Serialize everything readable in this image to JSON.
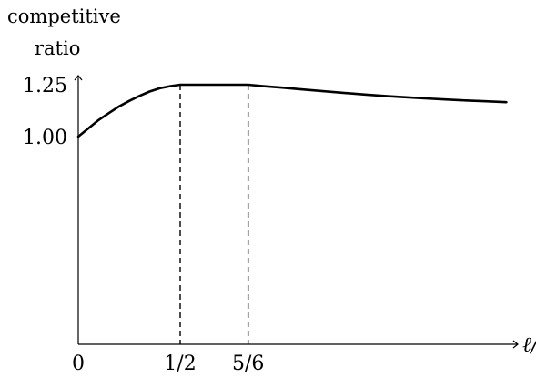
{
  "chart_data": {
    "type": "line",
    "ylabel_lines": [
      "competitive",
      "ratio"
    ],
    "xlabel": "ℓ/s",
    "xlim": [
      0,
      2.1
    ],
    "ylim": [
      0,
      1.25
    ],
    "x_ticks": [
      {
        "value": 0,
        "label": "0"
      },
      {
        "value": 0.5,
        "label": "1/2"
      },
      {
        "value": 0.8333,
        "label": "5/6"
      }
    ],
    "y_ticks": [
      {
        "value": 1.0,
        "label": "1.00"
      },
      {
        "value": 1.25,
        "label": "1.25"
      }
    ],
    "series": [
      {
        "x": [
          0,
          0.05,
          0.1,
          0.15,
          0.2,
          0.25,
          0.3,
          0.35,
          0.4,
          0.45,
          0.5,
          0.6,
          0.7,
          0.8333,
          0.9,
          1.0,
          1.1,
          1.2,
          1.3,
          1.4,
          1.5,
          1.6,
          1.7,
          1.8,
          1.9,
          2.0,
          2.1
        ],
        "y": [
          1.0,
          1.04,
          1.08,
          1.113,
          1.145,
          1.172,
          1.196,
          1.217,
          1.233,
          1.243,
          1.25,
          1.25,
          1.25,
          1.25,
          1.244,
          1.236,
          1.227,
          1.219,
          1.211,
          1.203,
          1.196,
          1.19,
          1.184,
          1.179,
          1.174,
          1.17,
          1.166
        ]
      }
    ],
    "dashed_guides_x": [
      0.5,
      0.8333
    ],
    "grid": false,
    "legend": "none"
  }
}
